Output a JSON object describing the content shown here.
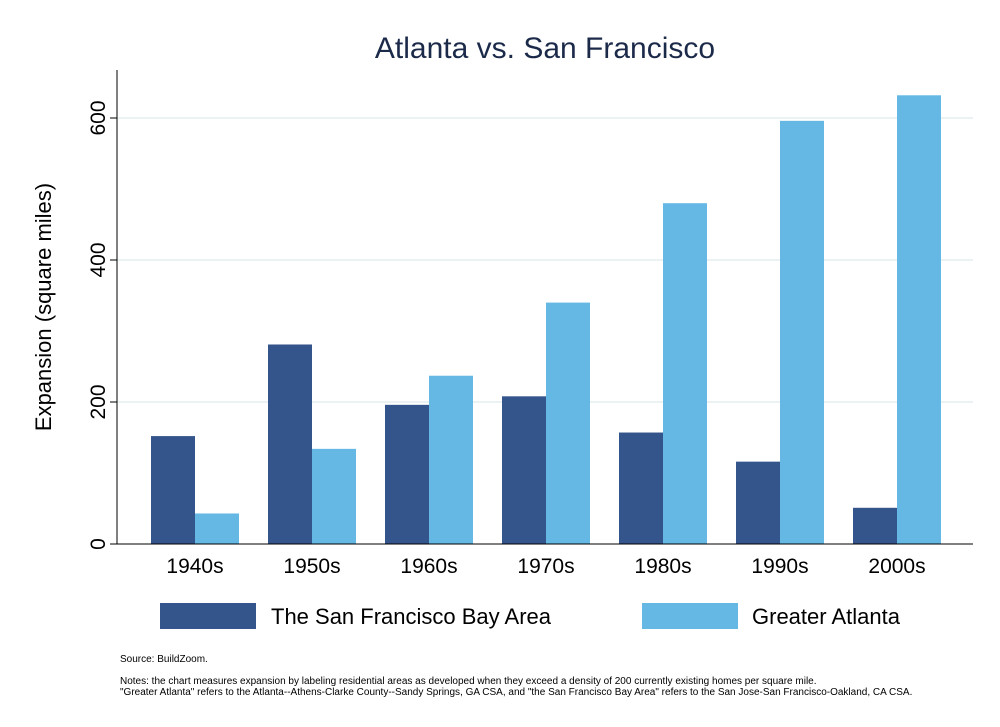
{
  "chart_data": {
    "type": "bar",
    "title": "Atlanta vs. San Francisco",
    "xlabel": "",
    "ylabel": "Expansion (square miles)",
    "ylim": [
      0,
      670
    ],
    "yticks": [
      0,
      200,
      400,
      600
    ],
    "grid": true,
    "legend_position": "bottom",
    "categories": [
      "1940s",
      "1950s",
      "1960s",
      "1970s",
      "1980s",
      "1990s",
      "2000s"
    ],
    "series": [
      {
        "name": "The San Francisco Bay Area",
        "color": "#34558b",
        "values": [
          152,
          281,
          196,
          208,
          157,
          116,
          51
        ]
      },
      {
        "name": "Greater Atlanta",
        "color": "#65b8e4",
        "values": [
          43,
          134,
          237,
          340,
          480,
          596,
          632
        ]
      }
    ]
  },
  "notes": {
    "source": "Source: BuildZoom.",
    "line1": "Notes: the chart measures expansion by labeling residential areas as developed when they exceed a density of 200 currently existing homes per square mile.",
    "line2": "\"Greater Atlanta\" refers to the Atlanta--Athens-Clarke County--Sandy Springs, GA CSA, and \"the San Francisco Bay Area\" refers to the San Jose-San Francisco-Oakland, CA CSA."
  }
}
